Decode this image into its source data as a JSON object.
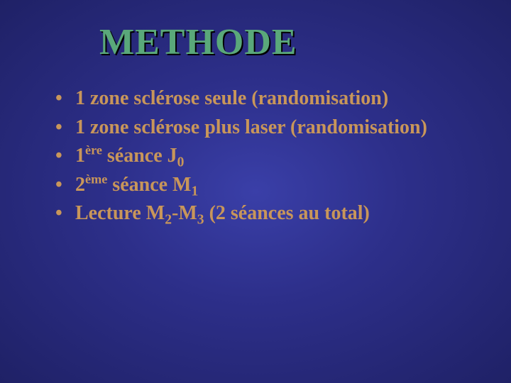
{
  "slide": {
    "title": "METHODE",
    "title_color": "#5aa87a",
    "title_fontsize": 52,
    "bullet_color": "#c8965a",
    "bullet_fontsize": 28,
    "background_gradient": [
      "#3a3fa8",
      "#2d2f8a",
      "#1f2166"
    ],
    "bullets": [
      {
        "html": "1 zone sclérose seule (randomisation)"
      },
      {
        "html": "1 zone sclérose plus laser (randomisation)"
      },
      {
        "html": "1<sup>ère</sup> séance J<sub>0</sub>"
      },
      {
        "html": "2<sup>ème</sup> séance M<sub>1</sub>"
      },
      {
        "html": "Lecture M<sub>2</sub>-M<sub>3</sub> (2 séances au total)"
      }
    ]
  }
}
